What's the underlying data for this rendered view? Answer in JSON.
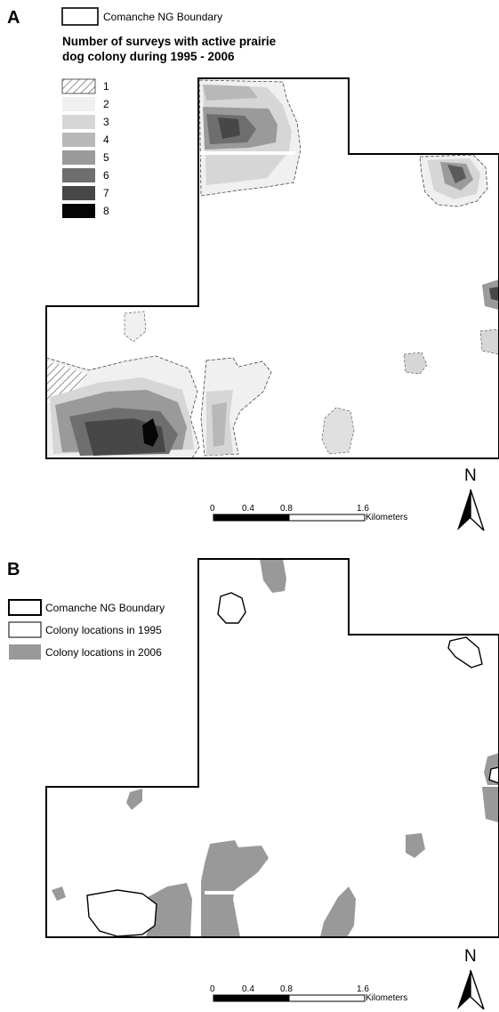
{
  "panel_a": {
    "letter": "A",
    "boundary_legend": "Comanche NG Boundary",
    "title_line1": "Number of surveys with active prairie",
    "title_line2": "dog colony during 1995 - 2006",
    "classes": [
      {
        "label": "1",
        "color": "#ffffff",
        "hatched": true
      },
      {
        "label": "2",
        "color": "#f0f0f0",
        "hatched": false
      },
      {
        "label": "3",
        "color": "#d6d6d6",
        "hatched": false
      },
      {
        "label": "4",
        "color": "#b8b8b8",
        "hatched": false
      },
      {
        "label": "5",
        "color": "#9a9a9a",
        "hatched": false
      },
      {
        "label": "6",
        "color": "#6e6e6e",
        "hatched": false
      },
      {
        "label": "7",
        "color": "#474747",
        "hatched": false
      },
      {
        "label": "8",
        "color": "#050505",
        "hatched": false
      }
    ],
    "scale": {
      "ticks": [
        "0",
        "0.4",
        "0.8",
        "1.6"
      ],
      "unit": "Kilometers"
    },
    "north": "N"
  },
  "panel_b": {
    "letter": "B",
    "legend": [
      {
        "label": "Comanche NG Boundary",
        "style": "boundary"
      },
      {
        "label": "Colony locations in 1995",
        "style": "outline"
      },
      {
        "label": "Colony locations in 2006",
        "style": "fill",
        "color": "#999999"
      }
    ],
    "scale": {
      "ticks": [
        "0",
        "0.4",
        "0.8",
        "1.6"
      ],
      "unit": "Kilometers"
    },
    "north": "N"
  }
}
